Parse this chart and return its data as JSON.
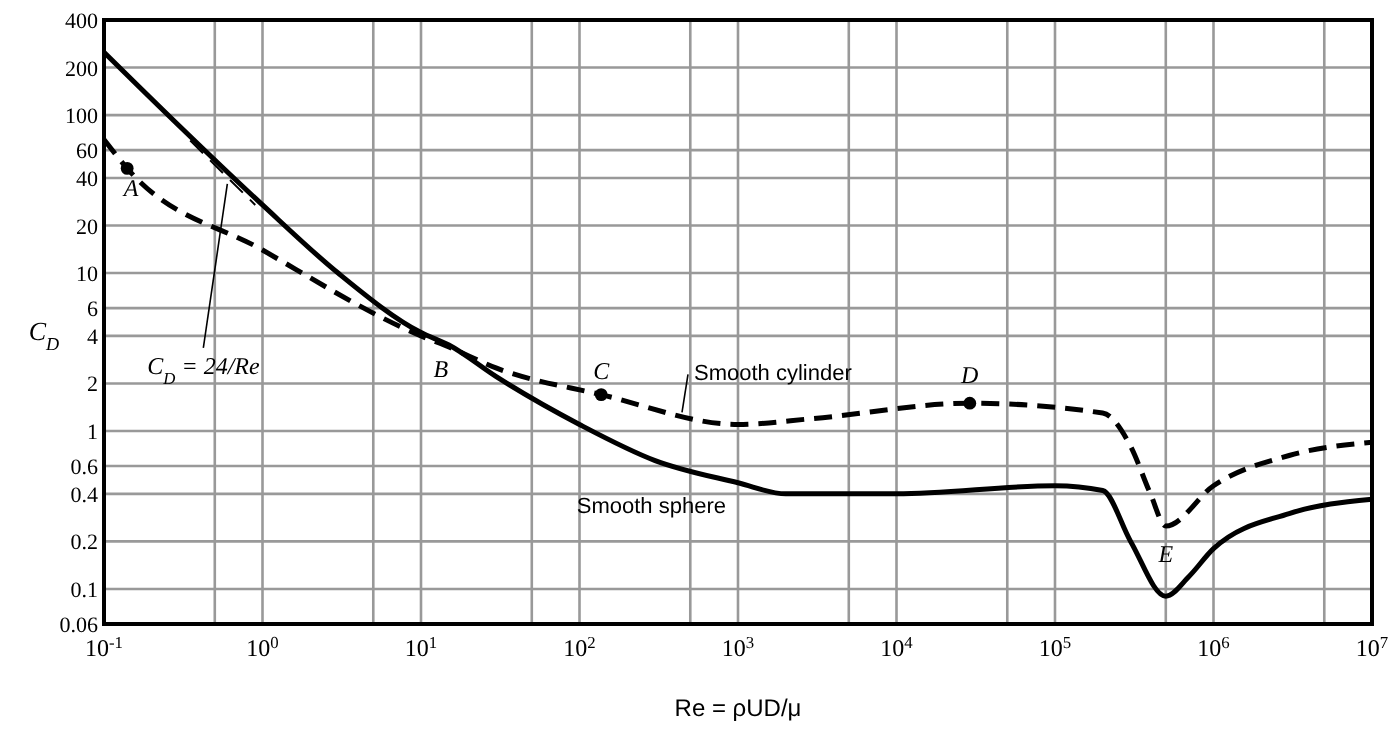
{
  "chart_data": {
    "type": "line",
    "xlabel": "Re = ρUD/μ",
    "ylabel": "C$_{D}$",
    "log": "xy",
    "grid": true,
    "xlim": [
      0.1,
      10000000
    ],
    "ylim": [
      0.06,
      400
    ],
    "xticks": [
      {
        "value": 0.1,
        "label": "10$^{-1}$"
      },
      {
        "value": 0.5,
        "label": null
      },
      {
        "value": 1,
        "label": "10$^{0}$"
      },
      {
        "value": 5,
        "label": null
      },
      {
        "value": 10,
        "label": "10$^{1}$"
      },
      {
        "value": 50,
        "label": null
      },
      {
        "value": 100,
        "label": "10$^{2}$"
      },
      {
        "value": 500,
        "label": null
      },
      {
        "value": 1000,
        "label": "10$^{3}$"
      },
      {
        "value": 5000,
        "label": null
      },
      {
        "value": 10000,
        "label": "10$^{4}$"
      },
      {
        "value": 50000,
        "label": null
      },
      {
        "value": 100000,
        "label": "10$^{5}$"
      },
      {
        "value": 500000,
        "label": null
      },
      {
        "value": 1000000,
        "label": "10$^{6}$"
      },
      {
        "value": 5000000,
        "label": null
      },
      {
        "value": 10000000,
        "label": "10$^{7}$"
      }
    ],
    "yticks": [
      400,
      200,
      100,
      60,
      40,
      20,
      10,
      6,
      4,
      2,
      1,
      0.6,
      0.4,
      0.2,
      0.1,
      0.06
    ],
    "series": [
      {
        "name": "Smooth sphere",
        "color": "#000000",
        "line_style": "solid",
        "x": [
          0.1,
          0.3,
          1,
          3,
          10,
          15,
          30,
          100,
          300,
          1000,
          2000,
          10000,
          100000,
          200000,
          300000,
          500000,
          700000,
          1000000,
          3000000,
          10000000
        ],
        "values": [
          250,
          85,
          27,
          10,
          4.2,
          3.5,
          2.2,
          1.1,
          0.65,
          0.47,
          0.4,
          0.4,
          0.45,
          0.42,
          0.2,
          0.09,
          0.12,
          0.18,
          0.3,
          0.37
        ]
      },
      {
        "name": "Smooth cylinder",
        "color": "#000000",
        "line_style": "dashed",
        "x": [
          0.1,
          0.14,
          1,
          10,
          15,
          30,
          137,
          1000,
          3000,
          29000,
          200000,
          300000,
          400000,
          500000,
          1000000,
          3000000,
          10000000
        ],
        "values": [
          70,
          46,
          14,
          4,
          3.4,
          2.5,
          1.7,
          1.1,
          1.2,
          1.5,
          1.3,
          0.8,
          0.4,
          0.25,
          0.45,
          0.7,
          0.85
        ]
      },
      {
        "color": "#000000",
        "line_style": "dashed",
        "x": [
          0.35,
          0.9
        ],
        "values": [
          69,
          27
        ]
      },
      {
        "type": "scatter",
        "color": "#000000",
        "marker": "circle",
        "x": [
          0.14,
          137,
          29000
        ],
        "values": [
          46,
          1.7,
          1.5
        ]
      }
    ],
    "annotations": [
      {
        "text": "C$_{D}$ = 24/Re",
        "x": 0.6,
        "y": 40
      },
      {
        "text": "A",
        "x": 0.14,
        "y": 46
      },
      {
        "text": "B",
        "x": 15,
        "y": 3.5
      },
      {
        "text": "C",
        "x": 137,
        "y": 1.7
      },
      {
        "text": "D",
        "x": 29000,
        "y": 1.5
      },
      {
        "text": "E",
        "x": 500000,
        "y": 0.25
      }
    ]
  }
}
